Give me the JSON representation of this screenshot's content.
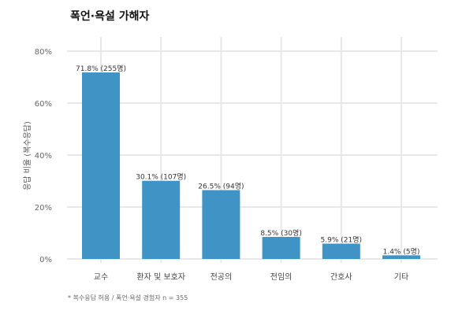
{
  "chart_data": {
    "type": "bar",
    "title": "폭언·욕설 가해자",
    "xlabel": "",
    "ylabel": "응답 비율 (복수응답)",
    "categories": [
      "교수",
      "환자 및 보호자",
      "전공의",
      "전임의",
      "간호사",
      "기타"
    ],
    "values": [
      71.8,
      30.1,
      26.5,
      8.5,
      5.9,
      1.4
    ],
    "data_labels": [
      "71.8% (255명)",
      "30.1% (107명)",
      "26.5% (94명)",
      "8.5% (30명)",
      "5.9% (21명)",
      "1.4% (5명)"
    ],
    "ylim": [
      0,
      80
    ],
    "yticks": [
      0,
      20,
      40,
      60,
      80
    ],
    "ytick_labels": [
      "0%",
      "20%",
      "40%",
      "60%",
      "80%"
    ],
    "grid": true,
    "bar_color": "#3f93c5",
    "footnote": "* 복수응답 허용 / 폭언·욕설 경험자 n = 355"
  }
}
